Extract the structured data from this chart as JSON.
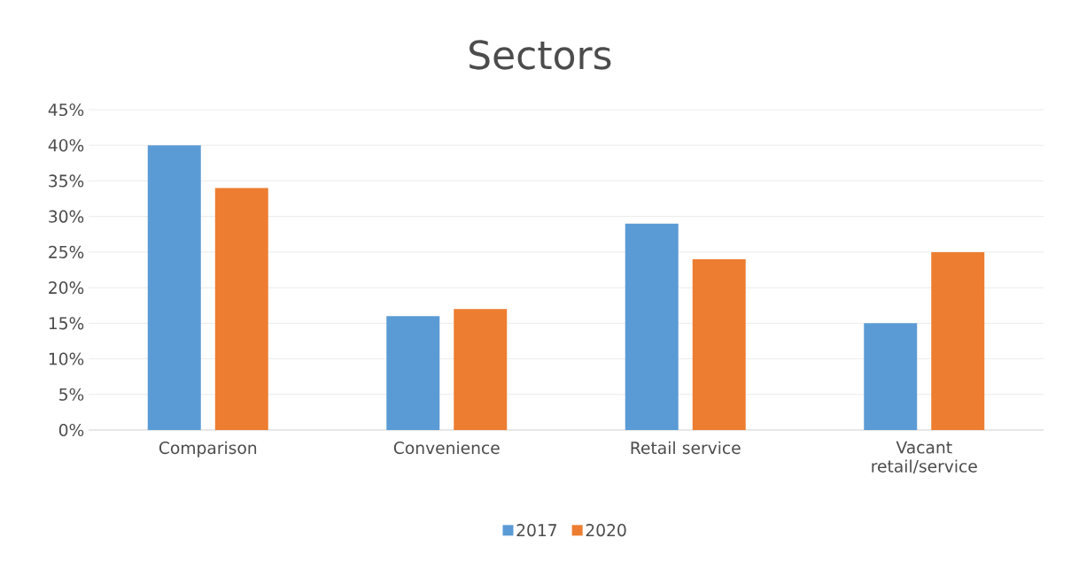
{
  "chart_data": {
    "type": "bar",
    "title": "Sectors",
    "categories": [
      "Comparison",
      "Convenience",
      "Retail service",
      "Vacant retail/service"
    ],
    "series": [
      {
        "name": "2017",
        "color": "#5b9bd5",
        "values": [
          40,
          16,
          29,
          15
        ]
      },
      {
        "name": "2020",
        "color": "#ed7d31",
        "values": [
          34,
          17,
          24,
          25
        ]
      }
    ],
    "ylim": [
      0,
      45
    ],
    "yticks": [
      {
        "value": 0,
        "label": "0%"
      },
      {
        "value": 5,
        "label": "5%"
      },
      {
        "value": 10,
        "label": "10%"
      },
      {
        "value": 15,
        "label": "15%"
      },
      {
        "value": 20,
        "label": "20%"
      },
      {
        "value": 25,
        "label": "25%"
      },
      {
        "value": 30,
        "label": "30%"
      },
      {
        "value": 35,
        "label": "35%"
      },
      {
        "value": 40,
        "label": "40%"
      },
      {
        "value": 45,
        "label": "45%"
      }
    ],
    "grid": "y",
    "legend": "bottom"
  }
}
